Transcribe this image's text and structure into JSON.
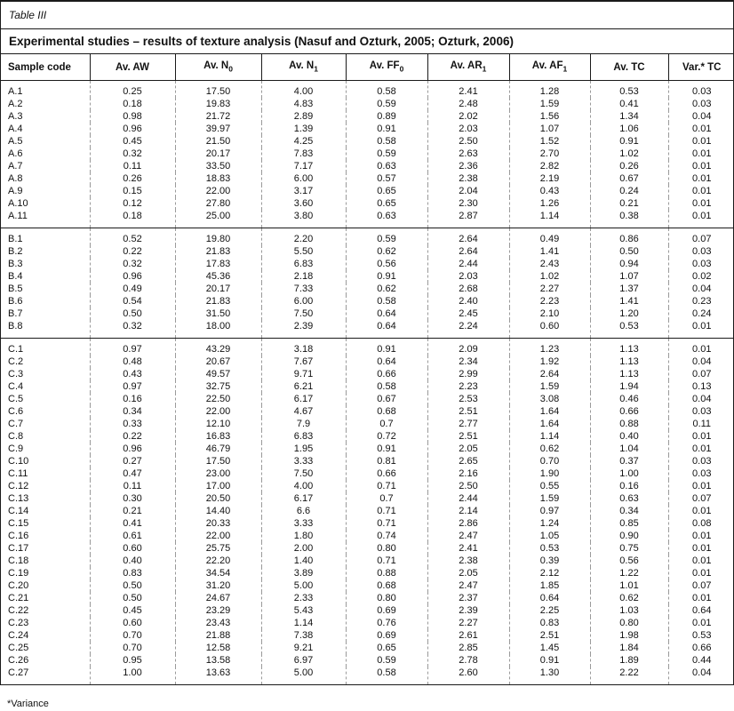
{
  "table_label": "Table III",
  "title": "Experimental studies – results of texture analysis (Nasuf and Ozturk, 2005; Ozturk, 2006)",
  "footnote": "*Variance",
  "columns": [
    {
      "text": "Sample code",
      "sub": ""
    },
    {
      "text": "Av. AW",
      "sub": ""
    },
    {
      "text": "Av. N",
      "sub": "0"
    },
    {
      "text": "Av. N",
      "sub": "1"
    },
    {
      "text": "Av. FF",
      "sub": "0"
    },
    {
      "text": "Av. AR",
      "sub": "1"
    },
    {
      "text": "Av. AF",
      "sub": "1"
    },
    {
      "text": "Av. TC",
      "sub": ""
    },
    {
      "text": "Var.* TC",
      "sub": ""
    }
  ],
  "groups": [
    {
      "name": "A",
      "rows": [
        [
          "A.1",
          "0.25",
          "17.50",
          "4.00",
          "0.58",
          "2.41",
          "1.28",
          "0.53",
          "0.03"
        ],
        [
          "A.2",
          "0.18",
          "19.83",
          "4.83",
          "0.59",
          "2.48",
          "1.59",
          "0.41",
          "0.03"
        ],
        [
          "A.3",
          "0.98",
          "21.72",
          "2.89",
          "0.89",
          "2.02",
          "1.56",
          "1.34",
          "0.04"
        ],
        [
          "A.4",
          "0.96",
          "39.97",
          "1.39",
          "0.91",
          "2.03",
          "1.07",
          "1.06",
          "0.01"
        ],
        [
          "A.5",
          "0.45",
          "21.50",
          "4.25",
          "0.58",
          "2.50",
          "1.52",
          "0.91",
          "0.01"
        ],
        [
          "A.6",
          "0.32",
          "20.17",
          "7.83",
          "0.59",
          "2.63",
          "2.70",
          "1.02",
          "0.01"
        ],
        [
          "A.7",
          "0.11",
          "33.50",
          "7.17",
          "0.63",
          "2.36",
          "2.82",
          "0.26",
          "0.01"
        ],
        [
          "A.8",
          "0.26",
          "18.83",
          "6.00",
          "0.57",
          "2.38",
          "2.19",
          "0.67",
          "0.01"
        ],
        [
          "A.9",
          "0.15",
          "22.00",
          "3.17",
          "0.65",
          "2.04",
          "0.43",
          "0.24",
          "0.01"
        ],
        [
          "A.10",
          "0.12",
          "27.80",
          "3.60",
          "0.65",
          "2.30",
          "1.26",
          "0.21",
          "0.01"
        ],
        [
          "A.11",
          "0.18",
          "25.00",
          "3.80",
          "0.63",
          "2.87",
          "1.14",
          "0.38",
          "0.01"
        ]
      ]
    },
    {
      "name": "B",
      "rows": [
        [
          "B.1",
          "0.52",
          "19.80",
          "2.20",
          "0.59",
          "2.64",
          "0.49",
          "0.86",
          "0.07"
        ],
        [
          "B.2",
          "0.22",
          "21.83",
          "5.50",
          "0.62",
          "2.64",
          "1.41",
          "0.50",
          "0.03"
        ],
        [
          "B.3",
          "0.32",
          "17.83",
          "6.83",
          "0.56",
          "2.44",
          "2.43",
          "0.94",
          "0.03"
        ],
        [
          "B.4",
          "0.96",
          "45.36",
          "2.18",
          "0.91",
          "2.03",
          "1.02",
          "1.07",
          "0.02"
        ],
        [
          "B.5",
          "0.49",
          "20.17",
          "7.33",
          "0.62",
          "2.68",
          "2.27",
          "1.37",
          "0.04"
        ],
        [
          "B.6",
          "0.54",
          "21.83",
          "6.00",
          "0.58",
          "2.40",
          "2.23",
          "1.41",
          "0.23"
        ],
        [
          "B.7",
          "0.50",
          "31.50",
          "7.50",
          "0.64",
          "2.45",
          "2.10",
          "1.20",
          "0.24"
        ],
        [
          "B.8",
          "0.32",
          "18.00",
          "2.39",
          "0.64",
          "2.24",
          "0.60",
          "0.53",
          "0.01"
        ]
      ]
    },
    {
      "name": "C",
      "rows": [
        [
          "C.1",
          "0.97",
          "43.29",
          "3.18",
          "0.91",
          "2.09",
          "1.23",
          "1.13",
          "0.01"
        ],
        [
          "C.2",
          "0.48",
          "20.67",
          "7.67",
          "0.64",
          "2.34",
          "1.92",
          "1.13",
          "0.04"
        ],
        [
          "C.3",
          "0.43",
          "49.57",
          "9.71",
          "0.66",
          "2.99",
          "2.64",
          "1.13",
          "0.07"
        ],
        [
          "C.4",
          "0.97",
          "32.75",
          "6.21",
          "0.58",
          "2.23",
          "1.59",
          "1.94",
          "0.13"
        ],
        [
          "C.5",
          "0.16",
          "22.50",
          "6.17",
          "0.67",
          "2.53",
          "3.08",
          "0.46",
          "0.04"
        ],
        [
          "C.6",
          "0.34",
          "22.00",
          "4.67",
          "0.68",
          "2.51",
          "1.64",
          "0.66",
          "0.03"
        ],
        [
          "C.7",
          "0.33",
          "12.10",
          "7.9",
          "0.7",
          "2.77",
          "1.64",
          "0.88",
          "0.11"
        ],
        [
          "C.8",
          "0.22",
          "16.83",
          "6.83",
          "0.72",
          "2.51",
          "1.14",
          "0.40",
          "0.01"
        ],
        [
          "C.9",
          "0.96",
          "46.79",
          "1.95",
          "0.91",
          "2.05",
          "0.62",
          "1.04",
          "0.01"
        ],
        [
          "C.10",
          "0.27",
          "17.50",
          "3.33",
          "0.81",
          "2.65",
          "0.70",
          "0.37",
          "0.03"
        ],
        [
          "C.11",
          "0.47",
          "23.00",
          "7.50",
          "0.66",
          "2.16",
          "1.90",
          "1.00",
          "0.03"
        ],
        [
          "C.12",
          "0.11",
          "17.00",
          "4.00",
          "0.71",
          "2.50",
          "0.55",
          "0.16",
          "0.01"
        ],
        [
          "C.13",
          "0.30",
          "20.50",
          "6.17",
          "0.7",
          "2.44",
          "1.59",
          "0.63",
          "0.07"
        ],
        [
          "C.14",
          "0.21",
          "14.40",
          "6.6",
          "0.71",
          "2.14",
          "0.97",
          "0.34",
          "0.01"
        ],
        [
          "C.15",
          "0.41",
          "20.33",
          "3.33",
          "0.71",
          "2.86",
          "1.24",
          "0.85",
          "0.08"
        ],
        [
          "C.16",
          "0.61",
          "22.00",
          "1.80",
          "0.74",
          "2.47",
          "1.05",
          "0.90",
          "0.01"
        ],
        [
          "C.17",
          "0.60",
          "25.75",
          "2.00",
          "0.80",
          "2.41",
          "0.53",
          "0.75",
          "0.01"
        ],
        [
          "C.18",
          "0.40",
          "22.20",
          "1.40",
          "0.71",
          "2.38",
          "0.39",
          "0.56",
          "0.01"
        ],
        [
          "C.19",
          "0.83",
          "34.54",
          "3.89",
          "0.88",
          "2.05",
          "2.12",
          "1.22",
          "0.01"
        ],
        [
          "C.20",
          "0.50",
          "31.20",
          "5.00",
          "0.68",
          "2.47",
          "1.85",
          "1.01",
          "0.07"
        ],
        [
          "C.21",
          "0.50",
          "24.67",
          "2.33",
          "0.80",
          "2.37",
          "0.64",
          "0.62",
          "0.01"
        ],
        [
          "C.22",
          "0.45",
          "23.29",
          "5.43",
          "0.69",
          "2.39",
          "2.25",
          "1.03",
          "0.64"
        ],
        [
          "C.23",
          "0.60",
          "23.43",
          "1.14",
          "0.76",
          "2.27",
          "0.83",
          "0.80",
          "0.01"
        ],
        [
          "C.24",
          "0.70",
          "21.88",
          "7.38",
          "0.69",
          "2.61",
          "2.51",
          "1.98",
          "0.53"
        ],
        [
          "C.25",
          "0.70",
          "12.58",
          "9.21",
          "0.65",
          "2.85",
          "1.45",
          "1.84",
          "0.66"
        ],
        [
          "C.26",
          "0.95",
          "13.58",
          "6.97",
          "0.59",
          "2.78",
          "0.91",
          "1.89",
          "0.44"
        ],
        [
          "C.27",
          "1.00",
          "13.63",
          "5.00",
          "0.58",
          "2.60",
          "1.30",
          "2.22",
          "0.04"
        ]
      ]
    }
  ]
}
